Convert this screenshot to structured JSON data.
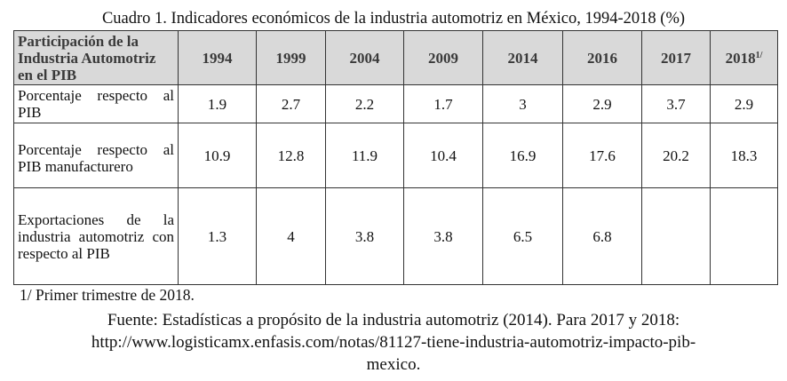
{
  "title": "Cuadro 1. Indicadores económicos de la industria automotriz en México, 1994-2018 (%)",
  "table": {
    "header_label": "Participación de la Industria Automotriz en el PIB",
    "years": [
      "1994",
      "1999",
      "2004",
      "2009",
      "2014",
      "2016",
      "2017",
      "2018"
    ],
    "footnote_marker": "1/",
    "rows": [
      {
        "label": "Porcentaje respecto al PIB",
        "values": [
          "1.9",
          "2.7",
          "2.2",
          "1.7",
          "3",
          "2.9",
          "3.7",
          "2.9"
        ]
      },
      {
        "label": "Porcentaje respecto al PIB manufacturero",
        "values": [
          "10.9",
          "12.8",
          "11.9",
          "10.4",
          "16.9",
          "17.6",
          "20.2",
          "18.3"
        ]
      },
      {
        "label": "Exportaciones de la industria automotriz con respecto al PIB",
        "values": [
          "1.3",
          "4",
          "3.8",
          "3.8",
          "6.5",
          "6.8",
          "",
          ""
        ]
      }
    ]
  },
  "note": "1/ Primer trimestre de 2018.",
  "source": {
    "line1": "Fuente: Estadísticas a propósito de la industria automotriz (2014). Para 2017 y 2018:",
    "line2": "http://www.logisticamx.enfasis.com/notas/81127-tiene-industria-automotriz-impacto-pib-",
    "line3": "mexico."
  }
}
